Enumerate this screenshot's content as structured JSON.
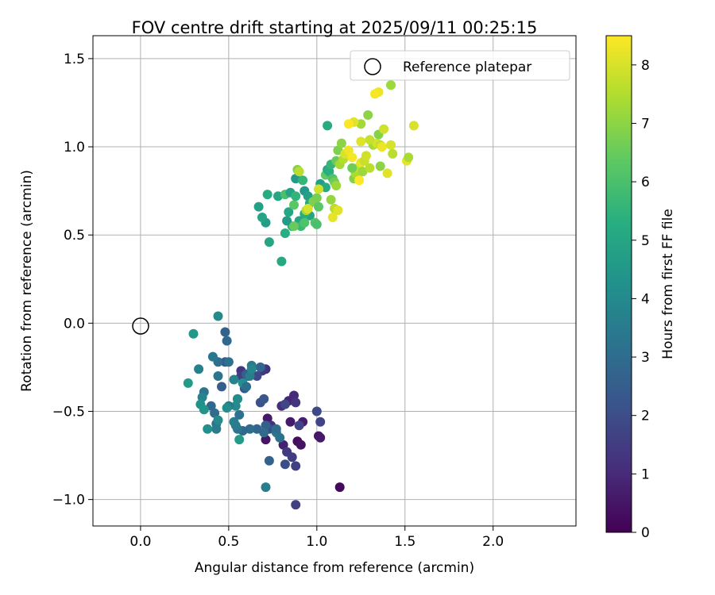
{
  "chart_data": {
    "type": "scatter",
    "title": "FOV centre drift starting at 2025/09/11 00:25:15",
    "xlabel": "Angular distance from reference (arcmin)",
    "ylabel": "Rotation from reference (arcmin)",
    "xlim": [
      -0.27,
      2.47
    ],
    "ylim": [
      -1.15,
      1.63
    ],
    "xticks": [
      0.0,
      0.5,
      1.0,
      1.5,
      2.0
    ],
    "xtick_labels": [
      "0.0",
      "0.5",
      "1.0",
      "1.5",
      "2.0"
    ],
    "yticks": [
      -1.0,
      -0.5,
      0.0,
      0.5,
      1.0,
      1.5
    ],
    "ytick_labels": [
      "−1.0",
      "−0.5",
      "0.0",
      "0.5",
      "1.0",
      "1.5"
    ],
    "grid": true,
    "legend": {
      "placement": "top-right",
      "entries": [
        "Reference platepar"
      ]
    },
    "reference_point": {
      "x": 0.0,
      "y": 0.0,
      "label": "Reference platepar"
    },
    "colorbar": {
      "label": "Hours from first FF file",
      "colormap": "viridis",
      "range": [
        0,
        8.5
      ],
      "ticks": [
        0,
        1,
        2,
        3,
        4,
        5,
        6,
        7,
        8
      ],
      "tick_labels": [
        "0",
        "1",
        "2",
        "3",
        "4",
        "5",
        "6",
        "7",
        "8"
      ]
    },
    "points": [
      [
        1.13,
        -0.93,
        0.2
      ],
      [
        0.89,
        -0.67,
        0.3
      ],
      [
        0.91,
        -0.69,
        0.4
      ],
      [
        1.01,
        -0.64,
        0.5
      ],
      [
        1.02,
        -0.65,
        0.6
      ],
      [
        0.85,
        -0.56,
        0.6
      ],
      [
        0.92,
        -0.56,
        0.7
      ],
      [
        0.81,
        -0.69,
        0.8
      ],
      [
        0.71,
        -0.66,
        0.5
      ],
      [
        0.72,
        -0.54,
        0.6
      ],
      [
        0.84,
        -0.44,
        0.9
      ],
      [
        0.87,
        -0.41,
        1.0
      ],
      [
        0.8,
        -0.47,
        1.1
      ],
      [
        0.74,
        -0.58,
        1.2
      ],
      [
        0.88,
        -0.45,
        1.3
      ],
      [
        0.83,
        -0.73,
        1.4
      ],
      [
        0.86,
        -0.76,
        1.5
      ],
      [
        0.88,
        -0.81,
        1.6
      ],
      [
        0.9,
        -0.58,
        1.7
      ],
      [
        0.82,
        -0.46,
        1.8
      ],
      [
        1.0,
        -0.5,
        1.9
      ],
      [
        0.88,
        -1.03,
        1.6
      ],
      [
        0.82,
        -0.8,
        2.0
      ],
      [
        1.02,
        -0.56,
        1.7
      ],
      [
        0.71,
        -0.26,
        1.2
      ],
      [
        0.69,
        -0.27,
        1.4
      ],
      [
        0.66,
        -0.3,
        1.9
      ],
      [
        0.61,
        -0.3,
        2.2
      ],
      [
        0.57,
        -0.27,
        1.3
      ],
      [
        0.57,
        -0.3,
        1.6
      ],
      [
        0.59,
        -0.37,
        2.4
      ],
      [
        0.6,
        -0.29,
        2.6
      ],
      [
        0.63,
        -0.24,
        3.5
      ],
      [
        0.68,
        -0.25,
        2.8
      ],
      [
        0.68,
        -0.45,
        2.1
      ],
      [
        0.7,
        -0.43,
        2.3
      ],
      [
        0.73,
        -0.6,
        2.0
      ],
      [
        0.71,
        -0.58,
        2.6
      ],
      [
        0.73,
        -0.78,
        2.7
      ],
      [
        0.7,
        -0.62,
        3.0
      ],
      [
        0.66,
        -0.6,
        2.8
      ],
      [
        0.62,
        -0.6,
        3.0
      ],
      [
        0.58,
        -0.61,
        2.9
      ],
      [
        0.55,
        -0.6,
        3.3
      ],
      [
        0.54,
        -0.58,
        3.5
      ],
      [
        0.53,
        -0.56,
        3.6
      ],
      [
        0.56,
        -0.52,
        3.2
      ],
      [
        0.55,
        -0.43,
        3.7
      ],
      [
        0.54,
        -0.47,
        4.0
      ],
      [
        0.5,
        -0.47,
        3.4
      ],
      [
        0.49,
        -0.48,
        4.1
      ],
      [
        0.53,
        -0.32,
        3.8
      ],
      [
        0.58,
        -0.34,
        4.2
      ],
      [
        0.6,
        -0.36,
        3.1
      ],
      [
        0.62,
        -0.3,
        3.6
      ],
      [
        0.63,
        -0.26,
        3.9
      ],
      [
        0.71,
        -0.93,
        3.6
      ],
      [
        0.77,
        -0.62,
        3.4
      ],
      [
        0.79,
        -0.65,
        3.2
      ],
      [
        0.77,
        -0.6,
        3.0
      ],
      [
        0.48,
        -0.22,
        2.4
      ],
      [
        0.5,
        -0.22,
        3.2
      ],
      [
        0.49,
        -0.1,
        2.9
      ],
      [
        0.48,
        -0.05,
        2.7
      ],
      [
        0.44,
        -0.22,
        3.1
      ],
      [
        0.41,
        -0.19,
        3.4
      ],
      [
        0.44,
        -0.3,
        3.3
      ],
      [
        0.46,
        -0.36,
        2.5
      ],
      [
        0.4,
        -0.47,
        2.8
      ],
      [
        0.42,
        -0.51,
        3.0
      ],
      [
        0.43,
        -0.57,
        3.1
      ],
      [
        0.43,
        -0.6,
        3.5
      ],
      [
        0.44,
        -0.55,
        4.0
      ],
      [
        0.38,
        -0.6,
        4.2
      ],
      [
        0.36,
        -0.39,
        3.3
      ],
      [
        0.35,
        -0.42,
        3.8
      ],
      [
        0.34,
        -0.46,
        4.3
      ],
      [
        0.36,
        -0.49,
        4.4
      ],
      [
        0.33,
        -0.26,
        3.7
      ],
      [
        0.27,
        -0.34,
        4.6
      ],
      [
        0.3,
        -0.06,
        4.5
      ],
      [
        0.44,
        0.04,
        4.0
      ],
      [
        0.56,
        -0.66,
        4.6
      ],
      [
        0.55,
        -0.43,
        4.1
      ],
      [
        0.8,
        0.35,
        5.1
      ],
      [
        0.73,
        0.46,
        5.0
      ],
      [
        0.71,
        0.57,
        4.7
      ],
      [
        0.69,
        0.6,
        5.0
      ],
      [
        0.67,
        0.66,
        4.8
      ],
      [
        0.72,
        0.73,
        5.2
      ],
      [
        0.78,
        0.72,
        5.0
      ],
      [
        0.82,
        0.73,
        6.0
      ],
      [
        0.85,
        0.74,
        4.9
      ],
      [
        0.82,
        0.51,
        5.3
      ],
      [
        0.86,
        0.55,
        5.4
      ],
      [
        0.83,
        0.58,
        4.6
      ],
      [
        0.84,
        0.63,
        5.0
      ],
      [
        0.87,
        0.67,
        6.3
      ],
      [
        0.88,
        0.72,
        5.5
      ],
      [
        0.88,
        0.82,
        4.6
      ],
      [
        0.92,
        0.81,
        5.6
      ],
      [
        0.93,
        0.75,
        4.5
      ],
      [
        0.95,
        0.72,
        4.8
      ],
      [
        0.96,
        0.68,
        5.1
      ],
      [
        0.96,
        0.61,
        4.9
      ],
      [
        0.93,
        0.62,
        5.2
      ],
      [
        0.9,
        0.58,
        5.0
      ],
      [
        0.91,
        0.55,
        5.7
      ],
      [
        0.93,
        0.57,
        6.1
      ],
      [
        0.94,
        0.64,
        7.4
      ],
      [
        0.95,
        0.65,
        8.0
      ],
      [
        0.98,
        0.69,
        6.8
      ],
      [
        1.0,
        0.71,
        6.7
      ],
      [
        0.99,
        0.57,
        6.2
      ],
      [
        1.0,
        0.56,
        6.0
      ],
      [
        1.01,
        0.66,
        6.3
      ],
      [
        1.02,
        0.79,
        4.7
      ],
      [
        1.05,
        0.77,
        5.2
      ],
      [
        1.05,
        0.84,
        6.4
      ],
      [
        1.06,
        0.87,
        5.1
      ],
      [
        1.07,
        0.86,
        5.3
      ],
      [
        1.08,
        0.9,
        5.6
      ],
      [
        1.09,
        0.82,
        6.1
      ],
      [
        1.1,
        0.8,
        6.6
      ],
      [
        1.11,
        0.78,
        7.2
      ],
      [
        1.1,
        0.65,
        7.6
      ],
      [
        1.08,
        0.7,
        7.1
      ],
      [
        1.09,
        0.6,
        8.2
      ],
      [
        1.12,
        0.64,
        8.1
      ],
      [
        1.11,
        0.92,
        6.5
      ],
      [
        1.12,
        0.98,
        6.8
      ],
      [
        1.13,
        0.9,
        7.3
      ],
      [
        1.15,
        0.93,
        7.5
      ],
      [
        1.16,
        0.96,
        8.0
      ],
      [
        1.18,
        0.98,
        8.3
      ],
      [
        1.14,
        1.02,
        7.0
      ],
      [
        1.2,
        0.94,
        8.4
      ],
      [
        1.21,
        0.82,
        6.9
      ],
      [
        1.22,
        0.85,
        7.4
      ],
      [
        1.23,
        0.88,
        7.7
      ],
      [
        1.25,
        0.91,
        8.2
      ],
      [
        1.24,
        0.81,
        8.5
      ],
      [
        1.26,
        0.86,
        7.2
      ],
      [
        1.27,
        0.92,
        7.8
      ],
      [
        1.25,
        1.03,
        8.1
      ],
      [
        1.28,
        0.95,
        7.9
      ],
      [
        1.3,
        0.88,
        7.6
      ],
      [
        1.32,
        1.01,
        7.3
      ],
      [
        1.34,
        1.02,
        8.0
      ],
      [
        1.35,
        1.07,
        6.9
      ],
      [
        1.36,
        1.01,
        7.7
      ],
      [
        1.37,
        1.0,
        8.3
      ],
      [
        1.38,
        1.1,
        7.9
      ],
      [
        1.36,
        0.89,
        7.0
      ],
      [
        1.4,
        0.85,
        8.1
      ],
      [
        1.42,
        1.01,
        8.0
      ],
      [
        1.43,
        0.96,
        7.6
      ],
      [
        1.42,
        1.35,
        7.2
      ],
      [
        1.35,
        1.31,
        8.3
      ],
      [
        1.33,
        1.3,
        8.4
      ],
      [
        1.29,
        1.18,
        7.0
      ],
      [
        1.25,
        1.13,
        7.3
      ],
      [
        1.21,
        1.14,
        8.1
      ],
      [
        1.18,
        1.13,
        8.5
      ],
      [
        1.3,
        1.04,
        7.8
      ],
      [
        1.51,
        0.92,
        8.2
      ],
      [
        1.52,
        0.94,
        7.4
      ],
      [
        1.55,
        1.12,
        8.0
      ],
      [
        1.2,
        0.88,
        6.6
      ],
      [
        1.06,
        1.12,
        5.2
      ],
      [
        0.89,
        0.87,
        6.9
      ],
      [
        0.9,
        0.86,
        7.6
      ],
      [
        0.87,
        0.55,
        6.5
      ],
      [
        1.01,
        0.76,
        7.9
      ]
    ]
  }
}
